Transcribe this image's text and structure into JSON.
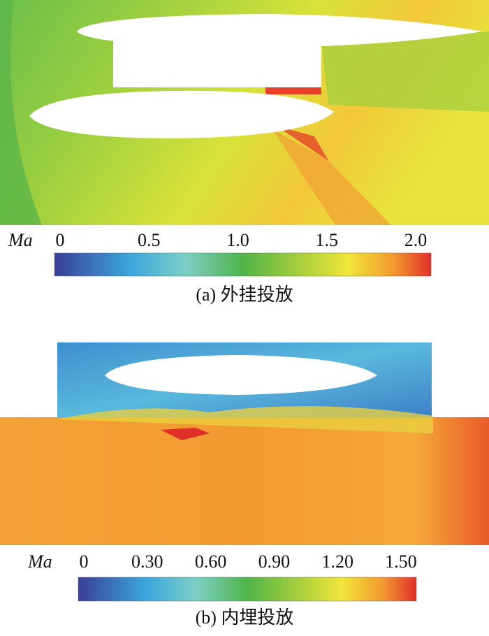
{
  "panels": [
    {
      "colorbar": {
        "label": "Ma",
        "lim": [
          0,
          2
        ],
        "ticks": [
          0,
          0.5,
          {
            "value": 1,
            "label": "1.0"
          },
          1.5,
          {
            "value": 2,
            "label": "2.0"
          }
        ]
      },
      "caption": "(a) 外挂投放"
    },
    {
      "colorbar": {
        "label": "Ma",
        "lim": [
          0,
          1.5
        ],
        "ticks": [
          0,
          {
            "value": 0.3,
            "label": "0.30"
          },
          {
            "value": 0.6,
            "label": "0.60"
          },
          {
            "value": 0.9,
            "label": "0.90"
          },
          {
            "value": 1.2,
            "label": "1.20"
          },
          {
            "value": 1.5,
            "label": "1.50"
          }
        ]
      },
      "caption": "(b) 内埋投放"
    }
  ]
}
